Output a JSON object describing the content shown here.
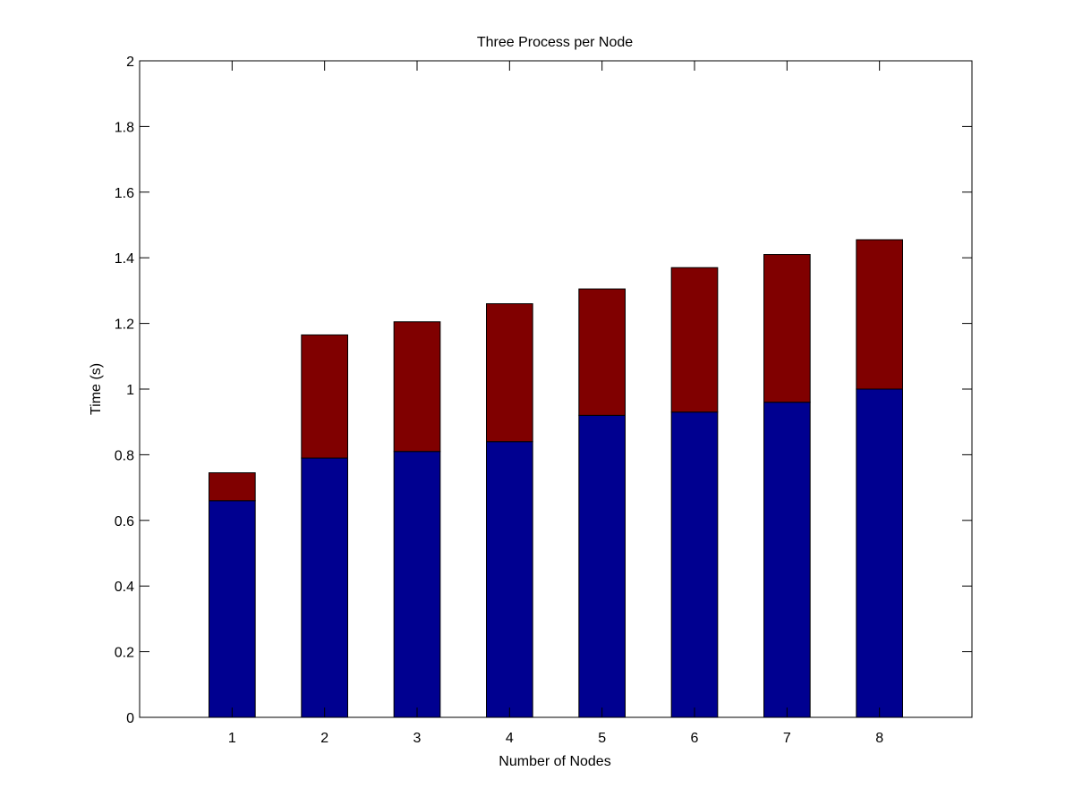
{
  "chart_data": {
    "type": "bar",
    "stacked": true,
    "title": "Three Process per Node",
    "xlabel": "Number of Nodes",
    "ylabel": "Time (s)",
    "categories": [
      "1",
      "2",
      "3",
      "4",
      "5",
      "6",
      "7",
      "8"
    ],
    "series": [
      {
        "color": "#000090",
        "values": [
          0.66,
          0.79,
          0.81,
          0.84,
          0.92,
          0.93,
          0.96,
          1.0
        ]
      },
      {
        "color": "#800000",
        "values": [
          0.085,
          0.375,
          0.395,
          0.42,
          0.385,
          0.44,
          0.45,
          0.455
        ]
      }
    ],
    "ylim": [
      0,
      2
    ],
    "yticks": [
      "0",
      "0.2",
      "0.4",
      "0.6",
      "0.8",
      "1",
      "1.2",
      "1.4",
      "1.6",
      "1.8",
      "2"
    ],
    "grid": false,
    "legend": "none"
  }
}
